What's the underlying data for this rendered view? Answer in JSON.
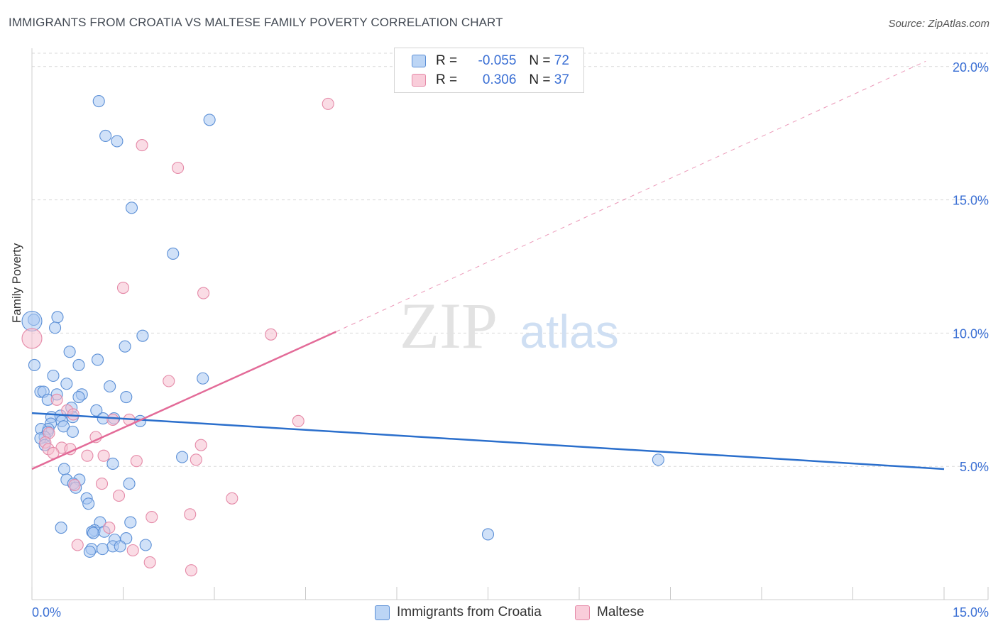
{
  "title": "IMMIGRANTS FROM CROATIA VS MALTESE FAMILY POVERTY CORRELATION CHART",
  "source": "Source: ZipAtlas.com",
  "watermark": {
    "zip": "ZIP",
    "atlas": "atlas"
  },
  "legend_stats": [
    {
      "label_r": "R =",
      "r": "-0.055",
      "label_n": "N =",
      "n": "72"
    },
    {
      "label_r": "R =",
      "r": "0.306",
      "label_n": "N =",
      "n": "37"
    }
  ],
  "colors": {
    "blue_fill": "#a9c9f2",
    "blue_stroke": "#5b8fd6",
    "blue_line": "#2b6fcc",
    "pink_fill": "#f6bfd0",
    "pink_stroke": "#e58aa8",
    "pink_line": "#e36b98",
    "tick_label": "#3a6fd4",
    "grid": "#d9d9d9"
  },
  "chart_data": {
    "type": "scatter",
    "title": "IMMIGRANTS FROM CROATIA VS MALTESE FAMILY POVERTY CORRELATION CHART",
    "xlabel": "",
    "ylabel": "Family Poverty",
    "xlim": [
      0,
      15
    ],
    "ylim": [
      0,
      20.5
    ],
    "x_tick_labels": [
      "0.0%",
      "15.0%"
    ],
    "y_ticks": [
      5,
      10,
      15,
      20
    ],
    "y_tick_labels": [
      "5.0%",
      "10.0%",
      "15.0%",
      "20.0%"
    ],
    "grid": true,
    "series": [
      {
        "name": "Immigrants from Croatia",
        "R": -0.055,
        "N": 72,
        "trend": {
          "x": [
            0,
            15
          ],
          "y": [
            7.0,
            4.9
          ]
        },
        "points": [
          [
            1.1,
            18.7
          ],
          [
            1.21,
            17.4
          ],
          [
            1.4,
            17.2
          ],
          [
            2.92,
            18
          ],
          [
            1.64,
            14.7
          ],
          [
            2.32,
            12.98
          ],
          [
            0.03,
            10.5
          ],
          [
            0.42,
            10.6
          ],
          [
            0.38,
            10.2
          ],
          [
            1.82,
            9.9
          ],
          [
            0.62,
            9.3
          ],
          [
            1.53,
            9.5
          ],
          [
            1.08,
            9.0
          ],
          [
            0.04,
            8.8
          ],
          [
            0.77,
            8.8
          ],
          [
            0.35,
            8.4
          ],
          [
            2.81,
            8.3
          ],
          [
            0.57,
            8.1
          ],
          [
            1.28,
            8.0
          ],
          [
            0.14,
            7.8
          ],
          [
            0.19,
            7.8
          ],
          [
            0.41,
            7.7
          ],
          [
            0.82,
            7.7
          ],
          [
            0.77,
            7.6
          ],
          [
            1.55,
            7.6
          ],
          [
            0.26,
            7.5
          ],
          [
            1.06,
            7.1
          ],
          [
            0.65,
            7.2
          ],
          [
            0.32,
            6.85
          ],
          [
            0.47,
            6.9
          ],
          [
            0.67,
            6.85
          ],
          [
            1.17,
            6.8
          ],
          [
            1.35,
            6.8
          ],
          [
            0.49,
            6.7
          ],
          [
            1.78,
            6.7
          ],
          [
            0.31,
            6.6
          ],
          [
            0.52,
            6.5
          ],
          [
            0.27,
            6.4
          ],
          [
            0.15,
            6.4
          ],
          [
            0.67,
            6.3
          ],
          [
            0.26,
            6.3
          ],
          [
            0.21,
            6.1
          ],
          [
            0.14,
            6.05
          ],
          [
            0.21,
            5.8
          ],
          [
            2.47,
            5.35
          ],
          [
            1.33,
            5.1
          ],
          [
            0.53,
            4.9
          ],
          [
            0.78,
            4.5
          ],
          [
            0.57,
            4.5
          ],
          [
            1.6,
            4.35
          ],
          [
            0.68,
            4.35
          ],
          [
            0.72,
            4.2
          ],
          [
            0.9,
            3.8
          ],
          [
            0.93,
            3.6
          ],
          [
            1.12,
            2.9
          ],
          [
            1.62,
            2.9
          ],
          [
            0.48,
            2.7
          ],
          [
            1.03,
            2.6
          ],
          [
            0.99,
            2.55
          ],
          [
            1.01,
            2.5
          ],
          [
            1.19,
            2.55
          ],
          [
            1.36,
            2.25
          ],
          [
            1.55,
            2.3
          ],
          [
            1.33,
            2.0
          ],
          [
            1.45,
            2.0
          ],
          [
            1.87,
            2.05
          ],
          [
            0.98,
            1.9
          ],
          [
            1.16,
            1.9
          ],
          [
            7.5,
            2.45
          ],
          [
            10.3,
            5.25
          ],
          [
            0.0,
            10.45
          ],
          [
            0.95,
            1.8
          ]
        ]
      },
      {
        "name": "Maltese",
        "R": 0.306,
        "N": 37,
        "trend": {
          "x": [
            0,
            5.0
          ],
          "y": [
            4.9,
            10.05
          ],
          "dashed_to": {
            "x": 14.7,
            "y": 20.2
          }
        },
        "points": [
          [
            4.87,
            18.6
          ],
          [
            1.81,
            17.05
          ],
          [
            2.4,
            16.2
          ],
          [
            1.5,
            11.7
          ],
          [
            2.82,
            11.5
          ],
          [
            3.93,
            9.95
          ],
          [
            0.0,
            9.8
          ],
          [
            2.25,
            8.2
          ],
          [
            4.38,
            6.7
          ],
          [
            0.58,
            7.1
          ],
          [
            0.41,
            7.5
          ],
          [
            0.68,
            6.95
          ],
          [
            1.33,
            6.75
          ],
          [
            1.6,
            6.75
          ],
          [
            1.05,
            6.1
          ],
          [
            0.28,
            6.25
          ],
          [
            0.22,
            5.9
          ],
          [
            2.78,
            5.8
          ],
          [
            0.49,
            5.7
          ],
          [
            0.27,
            5.65
          ],
          [
            0.63,
            5.65
          ],
          [
            0.35,
            5.5
          ],
          [
            0.91,
            5.4
          ],
          [
            1.18,
            5.4
          ],
          [
            1.72,
            5.2
          ],
          [
            2.7,
            5.25
          ],
          [
            1.15,
            4.35
          ],
          [
            0.7,
            4.3
          ],
          [
            3.29,
            3.8
          ],
          [
            1.43,
            3.9
          ],
          [
            2.6,
            3.2
          ],
          [
            1.97,
            3.1
          ],
          [
            1.27,
            2.7
          ],
          [
            0.75,
            2.05
          ],
          [
            1.66,
            1.85
          ],
          [
            1.94,
            1.4
          ],
          [
            2.62,
            1.1
          ]
        ]
      }
    ]
  }
}
